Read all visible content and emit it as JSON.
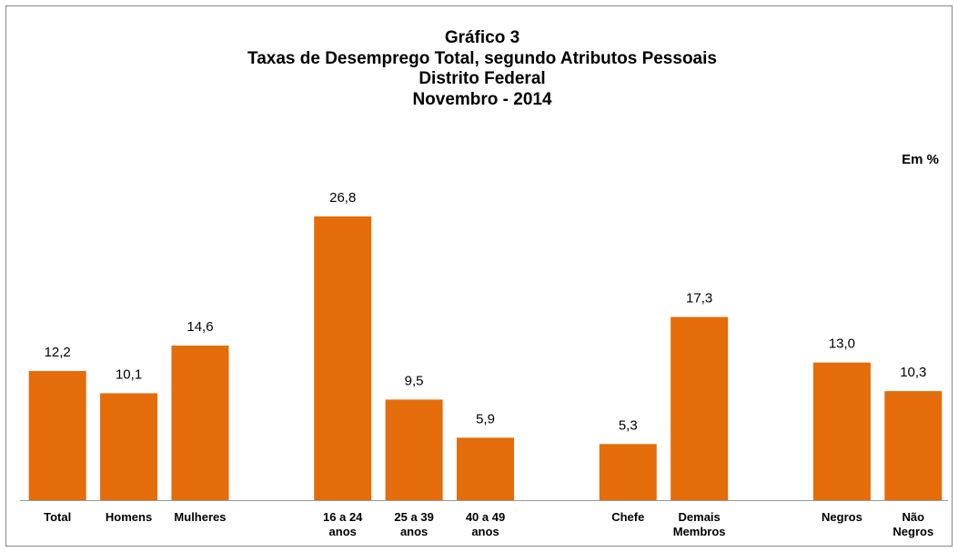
{
  "chart_data": {
    "type": "bar",
    "title": [
      "Gráfico 3",
      "Taxas de Desemprego Total, segundo Atributos Pessoais",
      "Distrito Federal",
      "Novembro - 2014"
    ],
    "unit_label": "Em %",
    "categories": [
      "Total",
      "Homens",
      "Mulheres",
      null,
      "16 a 24\nanos",
      "25 a 39\nanos",
      "40 a 49\nanos",
      null,
      "Chefe",
      "Demais\nMembros",
      null,
      "Negros",
      "Não\nNegros"
    ],
    "values": [
      12.2,
      10.1,
      14.6,
      null,
      26.8,
      9.5,
      5.9,
      null,
      5.3,
      17.3,
      null,
      13.0,
      10.3
    ],
    "value_labels": [
      "12,2",
      "10,1",
      "14,6",
      null,
      "26,8",
      "9,5",
      "5,9",
      null,
      "5,3",
      "17,3",
      null,
      "13,0",
      "10,3"
    ],
    "color": "#e46c0a"
  }
}
